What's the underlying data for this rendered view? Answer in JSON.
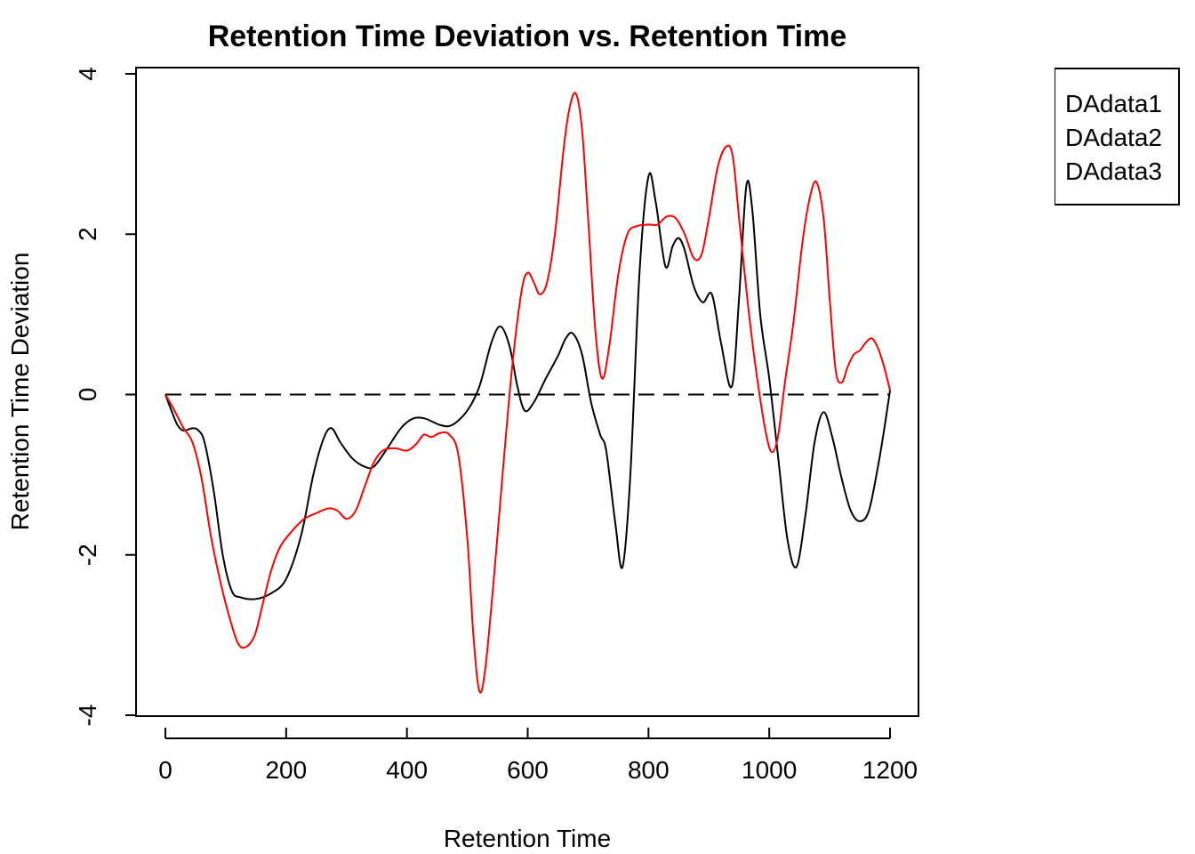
{
  "chart_data": {
    "type": "line",
    "title": "Retention Time Deviation vs. Retention Time",
    "xlabel": "Retention Time",
    "ylabel": "Retention Time Deviation",
    "xlim": [
      0,
      1200
    ],
    "ylim": [
      -4,
      4
    ],
    "x_ticks": [
      0,
      200,
      400,
      600,
      800,
      1000,
      1200
    ],
    "y_ticks": [
      -4,
      -2,
      0,
      2,
      4
    ],
    "x_tick_labels": [
      "0",
      "200",
      "400",
      "600",
      "800",
      "1000",
      "1200"
    ],
    "y_tick_labels": [
      "-4",
      "-2",
      "0",
      "2",
      "4"
    ],
    "grid": false,
    "legend_position": "outside top-right (clipped)",
    "legend": [
      "DAdata1",
      "DAdata2",
      "DAdata3"
    ],
    "series": [
      {
        "color": "#000000",
        "dash": "solid",
        "points": [
          [
            0,
            0
          ],
          [
            10,
            -0.2
          ],
          [
            20,
            -0.38
          ],
          [
            30,
            -0.45
          ],
          [
            45,
            -0.42
          ],
          [
            55,
            -0.45
          ],
          [
            65,
            -0.6
          ],
          [
            80,
            -1.2
          ],
          [
            95,
            -2.0
          ],
          [
            110,
            -2.45
          ],
          [
            125,
            -2.53
          ],
          [
            150,
            -2.55
          ],
          [
            175,
            -2.48
          ],
          [
            200,
            -2.3
          ],
          [
            225,
            -1.75
          ],
          [
            245,
            -1.0
          ],
          [
            262,
            -0.55
          ],
          [
            275,
            -0.42
          ],
          [
            290,
            -0.6
          ],
          [
            310,
            -0.8
          ],
          [
            330,
            -0.9
          ],
          [
            345,
            -0.9
          ],
          [
            365,
            -0.7
          ],
          [
            390,
            -0.42
          ],
          [
            410,
            -0.3
          ],
          [
            430,
            -0.3
          ],
          [
            455,
            -0.38
          ],
          [
            475,
            -0.38
          ],
          [
            500,
            -0.2
          ],
          [
            520,
            0.1
          ],
          [
            540,
            0.65
          ],
          [
            555,
            0.85
          ],
          [
            570,
            0.6
          ],
          [
            583,
            0.1
          ],
          [
            595,
            -0.2
          ],
          [
            610,
            -0.1
          ],
          [
            630,
            0.2
          ],
          [
            650,
            0.48
          ],
          [
            663,
            0.7
          ],
          [
            675,
            0.76
          ],
          [
            690,
            0.5
          ],
          [
            705,
            -0.1
          ],
          [
            720,
            -0.5
          ],
          [
            730,
            -0.7
          ],
          [
            745,
            -1.6
          ],
          [
            757,
            -2.15
          ],
          [
            770,
            -1.0
          ],
          [
            785,
            1.5
          ],
          [
            800,
            2.72
          ],
          [
            812,
            2.4
          ],
          [
            828,
            1.6
          ],
          [
            840,
            1.85
          ],
          [
            850,
            1.95
          ],
          [
            860,
            1.8
          ],
          [
            875,
            1.35
          ],
          [
            890,
            1.15
          ],
          [
            905,
            1.25
          ],
          [
            920,
            0.65
          ],
          [
            938,
            0.1
          ],
          [
            950,
            1.2
          ],
          [
            962,
            2.6
          ],
          [
            972,
            2.3
          ],
          [
            985,
            1.0
          ],
          [
            1000,
            0.2
          ],
          [
            1015,
            -0.8
          ],
          [
            1030,
            -1.8
          ],
          [
            1045,
            -2.15
          ],
          [
            1060,
            -1.5
          ],
          [
            1075,
            -0.6
          ],
          [
            1090,
            -0.22
          ],
          [
            1105,
            -0.55
          ],
          [
            1120,
            -1.05
          ],
          [
            1135,
            -1.45
          ],
          [
            1150,
            -1.58
          ],
          [
            1165,
            -1.45
          ],
          [
            1180,
            -0.9
          ],
          [
            1190,
            -0.45
          ],
          [
            1200,
            0.05
          ]
        ]
      },
      {
        "color": "#ff0000",
        "dash": "solid",
        "points": [
          [
            0,
            0
          ],
          [
            15,
            -0.2
          ],
          [
            30,
            -0.42
          ],
          [
            45,
            -0.6
          ],
          [
            60,
            -1.05
          ],
          [
            75,
            -1.75
          ],
          [
            90,
            -2.3
          ],
          [
            105,
            -2.75
          ],
          [
            120,
            -3.1
          ],
          [
            133,
            -3.15
          ],
          [
            148,
            -3.0
          ],
          [
            160,
            -2.65
          ],
          [
            175,
            -2.2
          ],
          [
            190,
            -1.9
          ],
          [
            210,
            -1.7
          ],
          [
            230,
            -1.55
          ],
          [
            250,
            -1.48
          ],
          [
            270,
            -1.42
          ],
          [
            285,
            -1.45
          ],
          [
            300,
            -1.55
          ],
          [
            315,
            -1.45
          ],
          [
            330,
            -1.15
          ],
          [
            345,
            -0.85
          ],
          [
            360,
            -0.7
          ],
          [
            380,
            -0.67
          ],
          [
            400,
            -0.7
          ],
          [
            415,
            -0.62
          ],
          [
            428,
            -0.5
          ],
          [
            440,
            -0.53
          ],
          [
            455,
            -0.48
          ],
          [
            470,
            -0.5
          ],
          [
            485,
            -0.75
          ],
          [
            500,
            -1.8
          ],
          [
            510,
            -3.0
          ],
          [
            520,
            -3.7
          ],
          [
            530,
            -3.4
          ],
          [
            545,
            -2.2
          ],
          [
            560,
            -0.85
          ],
          [
            575,
            0.4
          ],
          [
            590,
            1.3
          ],
          [
            600,
            1.52
          ],
          [
            610,
            1.4
          ],
          [
            620,
            1.25
          ],
          [
            632,
            1.4
          ],
          [
            645,
            2.0
          ],
          [
            660,
            3.1
          ],
          [
            670,
            3.6
          ],
          [
            680,
            3.75
          ],
          [
            690,
            3.3
          ],
          [
            700,
            2.2
          ],
          [
            712,
            0.8
          ],
          [
            723,
            0.2
          ],
          [
            735,
            0.6
          ],
          [
            750,
            1.5
          ],
          [
            765,
            2.0
          ],
          [
            780,
            2.1
          ],
          [
            800,
            2.12
          ],
          [
            815,
            2.12
          ],
          [
            830,
            2.22
          ],
          [
            845,
            2.2
          ],
          [
            860,
            2.0
          ],
          [
            875,
            1.7
          ],
          [
            888,
            1.75
          ],
          [
            900,
            2.2
          ],
          [
            915,
            2.85
          ],
          [
            930,
            3.1
          ],
          [
            940,
            2.95
          ],
          [
            950,
            2.2
          ],
          [
            965,
            1.1
          ],
          [
            980,
            0.2
          ],
          [
            995,
            -0.5
          ],
          [
            1005,
            -0.72
          ],
          [
            1015,
            -0.5
          ],
          [
            1025,
            0.1
          ],
          [
            1040,
            0.9
          ],
          [
            1055,
            1.9
          ],
          [
            1067,
            2.45
          ],
          [
            1078,
            2.65
          ],
          [
            1090,
            2.2
          ],
          [
            1100,
            1.2
          ],
          [
            1110,
            0.3
          ],
          [
            1120,
            0.15
          ],
          [
            1130,
            0.35
          ],
          [
            1140,
            0.5
          ],
          [
            1150,
            0.55
          ],
          [
            1160,
            0.65
          ],
          [
            1170,
            0.7
          ],
          [
            1180,
            0.58
          ],
          [
            1190,
            0.35
          ],
          [
            1200,
            0.05
          ]
        ]
      },
      {
        "color": "#000000",
        "dash": "dashed",
        "points": [
          [
            0,
            0
          ],
          [
            1200,
            0
          ]
        ]
      }
    ]
  }
}
